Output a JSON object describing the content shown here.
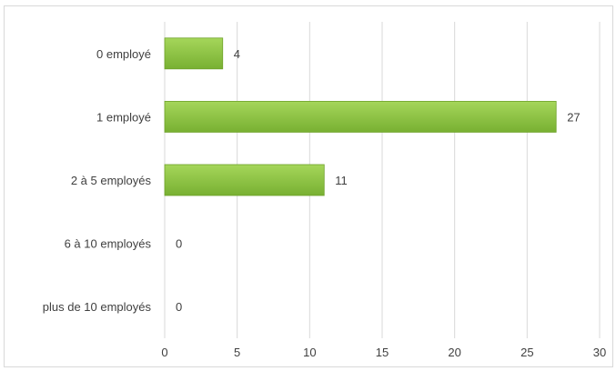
{
  "chart_data": {
    "type": "bar",
    "orientation": "horizontal",
    "categories": [
      "0 employé",
      "1 employé",
      "2 à 5 employés",
      "6 à 10 employés",
      "plus de 10 employés"
    ],
    "values": [
      4,
      27,
      11,
      0,
      0
    ],
    "data_labels": [
      "4",
      "27",
      "11",
      "0",
      "0"
    ],
    "xlim": [
      0,
      30
    ],
    "x_ticks": [
      "0",
      "5",
      "10",
      "15",
      "20",
      "25",
      "30"
    ],
    "grid": "vertical",
    "legend": "none",
    "colors": {
      "bar": "#8cc43f",
      "bar_dark": "#6fa22a",
      "grid": "#d9d9d9",
      "text": "#404040"
    }
  }
}
